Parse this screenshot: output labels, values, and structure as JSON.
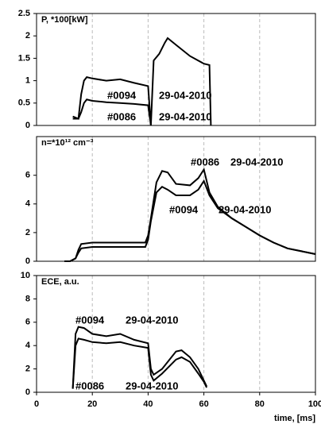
{
  "chart_data": [
    {
      "type": "line",
      "title": "P, *100[kW]",
      "x": [
        13,
        15,
        16,
        17,
        18,
        20,
        25,
        30,
        35,
        40,
        41,
        42,
        44,
        46,
        47,
        50,
        55,
        60,
        62,
        62.5
      ],
      "series": [
        {
          "name": "#0094",
          "date": "29-04-2010",
          "color": "#000000",
          "values": [
            0.2,
            0.15,
            0.7,
            1.0,
            1.08,
            1.05,
            1.0,
            1.03,
            0.95,
            0.88,
            0,
            1.45,
            1.6,
            1.85,
            1.95,
            1.8,
            1.55,
            1.38,
            1.35,
            0
          ]
        },
        {
          "name": "#0086",
          "date": "29-04-2010",
          "color": "#000000",
          "values": [
            0.15,
            0.15,
            0.3,
            0.5,
            0.58,
            0.55,
            0.52,
            0.5,
            0.48,
            0.45,
            0,
            null,
            null,
            null,
            null,
            null,
            null,
            null,
            null,
            null
          ]
        }
      ],
      "xlim": [
        0,
        100
      ],
      "ylim": [
        0,
        2.5
      ],
      "yticks": [
        0,
        0.5,
        1,
        1.5,
        2,
        2.5
      ],
      "grid": true
    },
    {
      "type": "line",
      "title": "n=*10¹² cm⁻³",
      "x": [
        10,
        12,
        14,
        15,
        16,
        20,
        30,
        39,
        40,
        41,
        43,
        45,
        47,
        50,
        55,
        58,
        60,
        62,
        65,
        70,
        75,
        80,
        85,
        90,
        95,
        100
      ],
      "series": [
        {
          "name": "#0086",
          "date": "29-04-2010",
          "color": "#000000",
          "values": [
            0,
            0,
            0.2,
            0.8,
            1.2,
            1.3,
            1.3,
            1.3,
            1.8,
            3.0,
            5.5,
            6.3,
            6.2,
            5.4,
            5.3,
            5.8,
            6.4,
            4.8,
            3.8,
            3.0,
            2.4,
            1.8,
            1.3,
            0.9,
            0.7,
            0.5
          ]
        },
        {
          "name": "#0094",
          "date": "29-04-2010",
          "color": "#000000",
          "values": [
            0,
            0,
            0.2,
            0.6,
            0.9,
            1.0,
            1.0,
            1.0,
            1.5,
            2.8,
            4.8,
            5.2,
            5.0,
            4.6,
            4.6,
            5.0,
            5.6,
            4.6,
            3.7,
            3.0,
            2.4,
            1.8,
            1.3,
            0.9,
            0.7,
            0.5
          ]
        }
      ],
      "xlim": [
        0,
        100
      ],
      "ylim": [
        0,
        8.7
      ],
      "yticks": [
        0,
        2,
        4,
        6
      ],
      "grid": true
    },
    {
      "type": "line",
      "title": "ECE, a.u.",
      "xlabel": "time, [ms]",
      "x": [
        13,
        14,
        15,
        17,
        20,
        25,
        30,
        35,
        40,
        41,
        42,
        45,
        50,
        52,
        55,
        58,
        60,
        61
      ],
      "series": [
        {
          "name": "#0094",
          "date": "29-04-2010",
          "color": "#000000",
          "values": [
            0.3,
            5.0,
            5.6,
            5.5,
            5.0,
            4.8,
            5.0,
            4.5,
            4.2,
            2.0,
            1.5,
            2.0,
            3.5,
            3.6,
            3.0,
            2.0,
            1.0,
            0.5
          ]
        },
        {
          "name": "#0086",
          "date": "29-04-2010",
          "color": "#000000",
          "values": [
            0.3,
            4.0,
            4.6,
            4.5,
            4.3,
            4.2,
            4.3,
            4.0,
            3.8,
            1.5,
            1.0,
            1.6,
            2.8,
            3.0,
            2.6,
            1.6,
            0.9,
            0.4
          ]
        }
      ],
      "xlim": [
        0,
        100
      ],
      "xticks": [
        0,
        20,
        40,
        60,
        80,
        100
      ],
      "ylim": [
        0,
        10
      ],
      "yticks": [
        0,
        2,
        4,
        6,
        8,
        10
      ],
      "grid": true
    }
  ]
}
